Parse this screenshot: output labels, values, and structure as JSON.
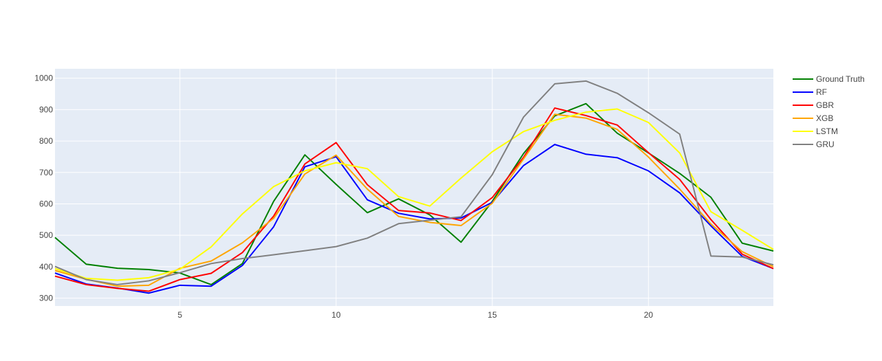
{
  "chart_data": {
    "type": "line",
    "title": "",
    "xlabel": "",
    "ylabel": "",
    "xlim": [
      1,
      24
    ],
    "ylim": [
      275,
      1030
    ],
    "x_ticks": [
      5,
      10,
      15,
      20
    ],
    "y_ticks": [
      300,
      400,
      500,
      600,
      700,
      800,
      900,
      1000
    ],
    "grid": true,
    "legend_position": "top-right",
    "plot_background": "#E5ECF6",
    "x": [
      1,
      2,
      3,
      4,
      5,
      6,
      7,
      8,
      9,
      10,
      11,
      12,
      13,
      14,
      15,
      16,
      17,
      18,
      19,
      20,
      21,
      22,
      23,
      24
    ],
    "series": [
      {
        "name": "Ground Truth",
        "color": "#008000",
        "values": [
          493,
          408,
          395,
          391,
          380,
          343,
          410,
          608,
          756,
          662,
          572,
          616,
          565,
          478,
          608,
          760,
          880,
          919,
          825,
          762,
          697,
          621,
          475,
          450
        ]
      },
      {
        "name": "RF",
        "color": "#0000FF",
        "values": [
          380,
          345,
          332,
          316,
          341,
          338,
          404,
          527,
          718,
          750,
          613,
          570,
          552,
          555,
          605,
          722,
          789,
          758,
          747,
          705,
          635,
          530,
          433,
          394
        ]
      },
      {
        "name": "GBR",
        "color": "#FF0000",
        "values": [
          370,
          343,
          331,
          322,
          359,
          379,
          445,
          561,
          727,
          795,
          661,
          579,
          571,
          547,
          620,
          748,
          905,
          881,
          851,
          763,
          678,
          550,
          440,
          394
        ]
      },
      {
        "name": "XGB",
        "color": "#FFA500",
        "values": [
          388,
          360,
          338,
          341,
          395,
          418,
          476,
          554,
          695,
          755,
          647,
          560,
          541,
          531,
          602,
          743,
          885,
          873,
          837,
          749,
          647,
          536,
          448,
          400
        ]
      },
      {
        "name": "LSTM",
        "color": "#FFFF00",
        "values": [
          394,
          363,
          357,
          365,
          392,
          463,
          568,
          655,
          705,
          731,
          712,
          623,
          593,
          682,
          766,
          830,
          866,
          892,
          902,
          859,
          762,
          575,
          516,
          455
        ]
      },
      {
        "name": "GRU",
        "color": "#808080",
        "values": [
          401,
          359,
          343,
          355,
          381,
          410,
          426,
          438,
          451,
          464,
          491,
          537,
          548,
          559,
          693,
          876,
          982,
          991,
          952,
          890,
          822,
          434,
          431,
          406
        ]
      }
    ]
  }
}
